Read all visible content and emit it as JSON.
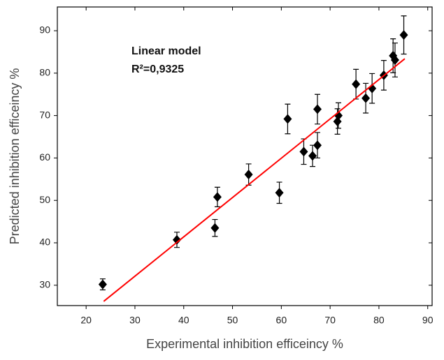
{
  "chart_data": {
    "type": "scatter",
    "x_label": "Experimental inhibition efficeincy  %",
    "y_label": "Predicted  inhibition efficeincy  %",
    "annotations": [
      "Linear model",
      "R²=0,9325"
    ],
    "xlim": [
      14.1,
      90.9
    ],
    "ylim": [
      25.2,
      95.6
    ],
    "xticks": [
      20,
      30,
      40,
      50,
      60,
      70,
      80,
      90
    ],
    "yticks": [
      30,
      40,
      50,
      60,
      70,
      80,
      90
    ],
    "series": [
      {
        "color": "#000000",
        "x": [
          23.4,
          38.6,
          46.4,
          46.9,
          53.3,
          59.6,
          61.3,
          64.6,
          66.4,
          67.4,
          67.4,
          71.5,
          71.7,
          75.3,
          77.3,
          78.6,
          81.0,
          82.9,
          83.3,
          85.1
        ],
        "values": [
          30.2,
          40.7,
          43.5,
          50.8,
          56.1,
          51.8,
          69.2,
          61.5,
          60.5,
          63.0,
          71.5,
          68.6,
          70.0,
          77.4,
          74.1,
          76.4,
          79.5,
          84.1,
          83.1,
          89.0
        ],
        "errors": [
          1.3,
          1.8,
          2.0,
          2.3,
          2.5,
          2.5,
          3.5,
          3.0,
          2.5,
          3.0,
          3.5,
          3.0,
          3.0,
          3.5,
          3.5,
          3.5,
          3.5,
          4.0,
          4.0,
          4.5
        ]
      }
    ],
    "fit_line": {
      "color": "#ff0000",
      "x": [
        23.6,
        85.3
      ],
      "y": [
        26.2,
        83.4
      ]
    }
  }
}
